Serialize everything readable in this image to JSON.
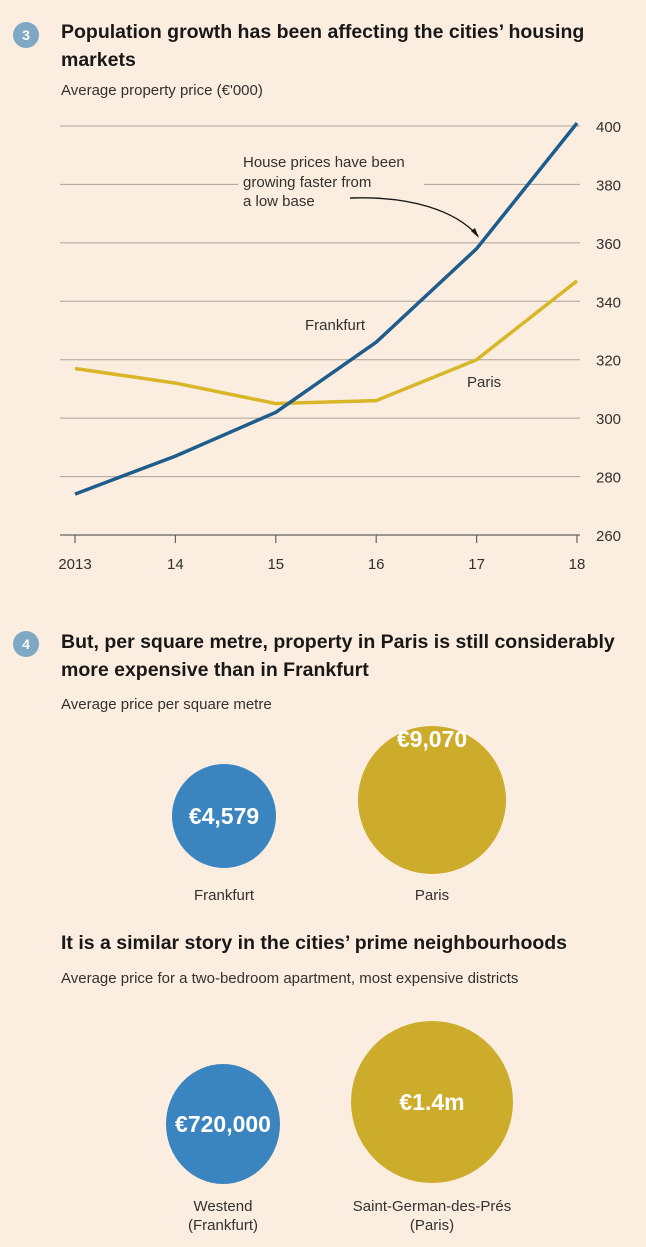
{
  "section3": {
    "badge": "3",
    "title": "Population growth has been affecting the cities’ housing markets",
    "subtitle": "Average property price (€'000)"
  },
  "chart_data": {
    "type": "line",
    "x": [
      "2013",
      "14",
      "15",
      "16",
      "17",
      "18"
    ],
    "ylim": [
      260,
      400
    ],
    "yticks": [
      260,
      280,
      300,
      320,
      340,
      360,
      380,
      400
    ],
    "grid": true,
    "series": [
      {
        "name": "Frankfurt",
        "color": "#1e5c8b",
        "values": [
          274,
          287,
          302,
          326,
          358,
          401
        ]
      },
      {
        "name": "Paris",
        "color": "#d9b528",
        "values": [
          317,
          312,
          305,
          306,
          320,
          347
        ]
      }
    ],
    "annotation": {
      "lines": [
        "House prices have been",
        "growing faster from",
        "a low base"
      ]
    }
  },
  "section4": {
    "badge": "4",
    "title": "But, per square metre, property in Paris is still considerably more expensive than in Frankfurt",
    "subtitle": "Average price per square metre",
    "bubbles": [
      {
        "label": "Frankfurt",
        "value_text": "€4,579",
        "value": 4579,
        "color": "#3a84bf"
      },
      {
        "label": "Paris",
        "value_text": "€9,070",
        "value": 9070,
        "color": "#cdac2b"
      }
    ]
  },
  "section5": {
    "title": "It is a similar story in the cities’ prime neighbourhoods",
    "subtitle": "Average price for a two-bedroom apartment, most expensive districts",
    "bubbles": [
      {
        "label_line1": "Westend",
        "label_line2": "(Frankfurt)",
        "value_text": "€720,000",
        "value": 720000,
        "color": "#3a84bf"
      },
      {
        "label_line1": "Saint-German-des-Prés",
        "label_line2": "(Paris)",
        "value_text": "€1.4m",
        "value": 1400000,
        "color": "#cdac2b"
      }
    ]
  }
}
